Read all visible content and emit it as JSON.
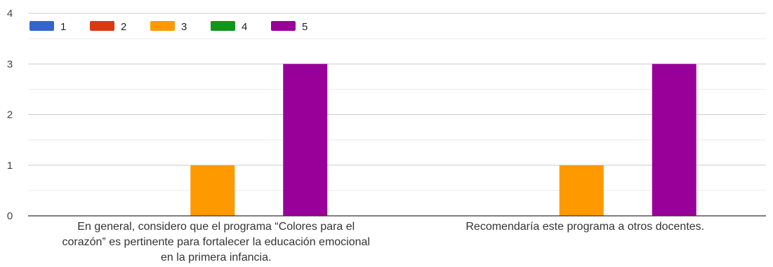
{
  "chart_data": {
    "type": "bar",
    "title": "",
    "xlabel": "",
    "ylabel": "",
    "ylim": [
      0,
      4
    ],
    "yticks": [
      "0",
      "1",
      "2",
      "3",
      "4"
    ],
    "grid": true,
    "legend_position": "top-left",
    "categories": [
      [
        "En general, considero que el programa “Colores para el",
        "corazón” es pertinente para fortalecer la educación emocional",
        "en la primera infancia."
      ],
      [
        "Recomendaría este programa a otros docentes."
      ]
    ],
    "series": [
      {
        "name": "1",
        "color": "#3366cc",
        "values": [
          0,
          0
        ]
      },
      {
        "name": "2",
        "color": "#dc3912",
        "values": [
          0,
          0
        ]
      },
      {
        "name": "3",
        "color": "#ff9900",
        "values": [
          1,
          1
        ]
      },
      {
        "name": "4",
        "color": "#109618",
        "values": [
          0,
          0
        ]
      },
      {
        "name": "5",
        "color": "#990099",
        "values": [
          3,
          3
        ]
      }
    ]
  }
}
